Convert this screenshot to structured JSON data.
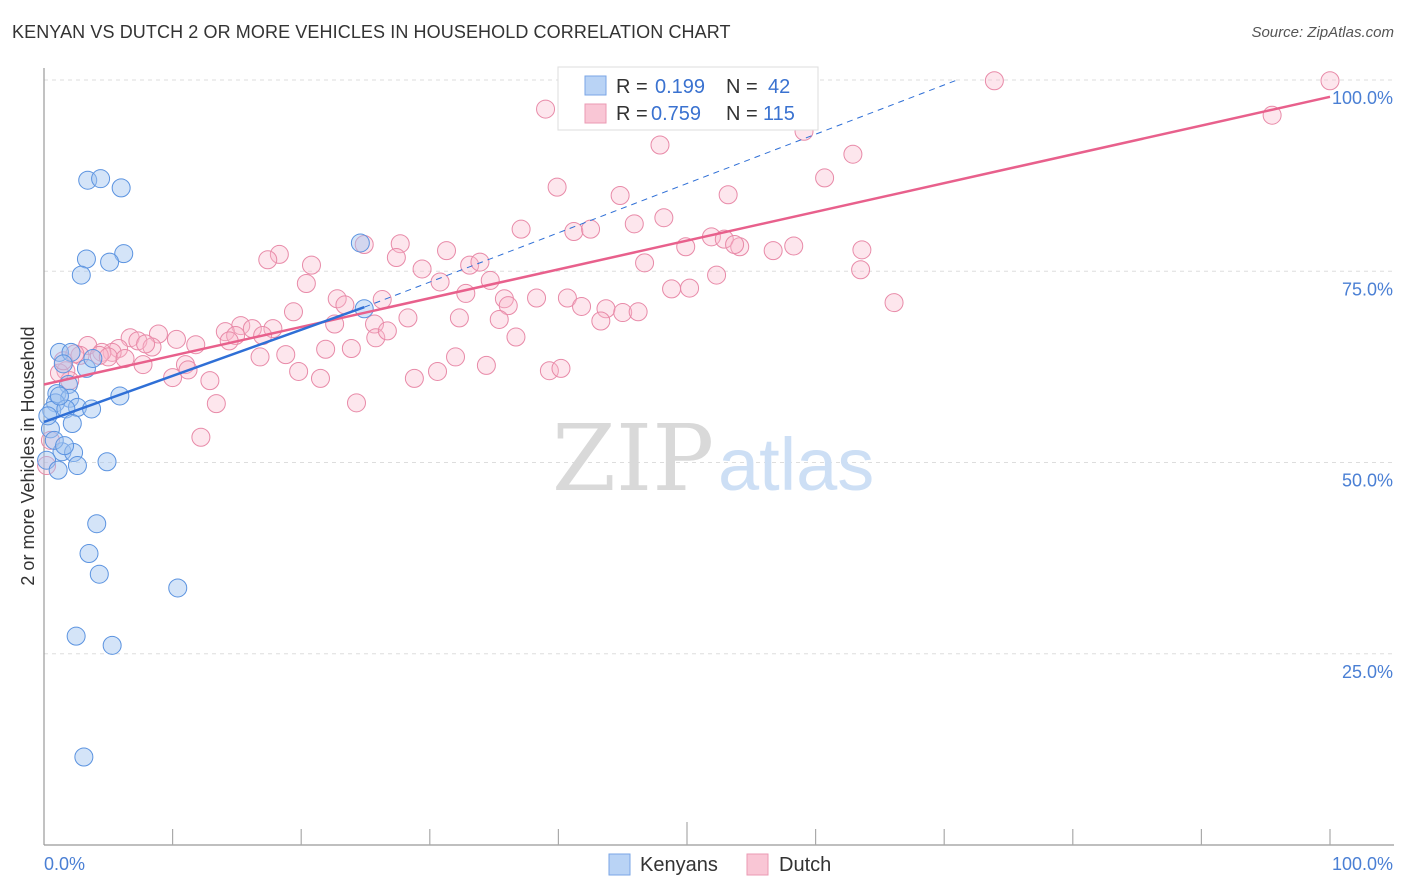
{
  "title": "KENYAN VS DUTCH 2 OR MORE VEHICLES IN HOUSEHOLD CORRELATION CHART",
  "source": "Source: ZipAtlas.com",
  "watermark": {
    "zip": "ZIP",
    "atlas": "atlas"
  },
  "legend_box": {
    "rows": [
      {
        "r_label": "R =",
        "r_value": "0.199",
        "n_label": "N =",
        "n_value": "42"
      },
      {
        "r_label": "R =",
        "r_value": "0.759",
        "n_label": "N =",
        "n_value": "115"
      }
    ]
  },
  "chart_data": {
    "type": "scatter",
    "title": "KENYAN VS DUTCH 2 OR MORE VEHICLES IN HOUSEHOLD CORRELATION CHART",
    "xlabel": "",
    "ylabel": "2 or more Vehicles in Household",
    "xlim": [
      0,
      100
    ],
    "ylim": [
      0,
      100
    ],
    "x_tick_labels": [
      "0.0%",
      "100.0%"
    ],
    "y_ticks": [
      25,
      50,
      75,
      100
    ],
    "y_tick_labels": [
      "25.0%",
      "50.0%",
      "75.0%",
      "100.0%"
    ],
    "grid": true,
    "legend_placement": "bottom",
    "colors": {
      "Kenyans": "#5b93e0",
      "Dutch": "#e88aa8",
      "Kenyans_line": "#2f6fd6",
      "Dutch_line": "#e8608c"
    },
    "series": [
      {
        "name": "Kenyans",
        "R": 0.199,
        "N": 42,
        "trend": {
          "x": [
            0,
            24.9
          ],
          "y": [
            55.3,
            70.3
          ],
          "dashed_to": [
            71,
            100
          ]
        },
        "points": [
          [
            3.4,
            86.9
          ],
          [
            4.4,
            87.1
          ],
          [
            6.0,
            85.9
          ],
          [
            6.2,
            77.3
          ],
          [
            3.3,
            76.6
          ],
          [
            5.1,
            76.2
          ],
          [
            2.9,
            74.5
          ],
          [
            24.6,
            78.7
          ],
          [
            24.9,
            70.1
          ],
          [
            1.2,
            64.4
          ],
          [
            2.1,
            64.4
          ],
          [
            1.5,
            62.9
          ],
          [
            3.3,
            62.3
          ],
          [
            3.8,
            63.6
          ],
          [
            1.9,
            60.2
          ],
          [
            1.0,
            59.0
          ],
          [
            5.9,
            58.7
          ],
          [
            2.0,
            58.4
          ],
          [
            0.9,
            57.8
          ],
          [
            2.6,
            57.2
          ],
          [
            3.7,
            57.0
          ],
          [
            0.6,
            56.8
          ],
          [
            1.7,
            57.0
          ],
          [
            2.2,
            55.1
          ],
          [
            0.5,
            54.4
          ],
          [
            1.4,
            51.4
          ],
          [
            2.3,
            51.3
          ],
          [
            4.9,
            50.1
          ],
          [
            2.6,
            49.6
          ],
          [
            0.2,
            50.3
          ],
          [
            4.1,
            42.0
          ],
          [
            3.5,
            38.1
          ],
          [
            4.3,
            35.4
          ],
          [
            10.4,
            33.6
          ],
          [
            2.5,
            27.3
          ],
          [
            5.3,
            26.1
          ],
          [
            3.1,
            11.5
          ],
          [
            0.3,
            56.1
          ],
          [
            1.2,
            58.7
          ],
          [
            0.8,
            52.9
          ],
          [
            1.6,
            52.2
          ],
          [
            1.1,
            49.0
          ]
        ]
      },
      {
        "name": "Dutch",
        "R": 0.759,
        "N": 115,
        "trend": {
          "x": [
            0,
            100
          ],
          "y": [
            60.2,
            97.8
          ]
        },
        "points": [
          [
            73.9,
            99.9
          ],
          [
            100,
            99.9
          ],
          [
            54.6,
            99.9
          ],
          [
            39.0,
            96.2
          ],
          [
            95.5,
            95.4
          ],
          [
            59.1,
            93.3
          ],
          [
            47.9,
            91.5
          ],
          [
            62.9,
            90.3
          ],
          [
            39.9,
            86.0
          ],
          [
            60.7,
            87.2
          ],
          [
            44.8,
            84.9
          ],
          [
            53.2,
            85.0
          ],
          [
            48.2,
            82.0
          ],
          [
            45.9,
            81.2
          ],
          [
            37.1,
            80.5
          ],
          [
            41.2,
            80.2
          ],
          [
            42.5,
            80.5
          ],
          [
            49.9,
            78.2
          ],
          [
            51.9,
            79.5
          ],
          [
            52.9,
            79.2
          ],
          [
            54.1,
            78.2
          ],
          [
            53.7,
            78.5
          ],
          [
            56.7,
            77.7
          ],
          [
            58.3,
            78.3
          ],
          [
            63.6,
            77.8
          ],
          [
            27.7,
            78.6
          ],
          [
            24.9,
            78.5
          ],
          [
            31.3,
            77.7
          ],
          [
            18.3,
            77.2
          ],
          [
            17.4,
            76.5
          ],
          [
            20.8,
            75.8
          ],
          [
            27.4,
            76.8
          ],
          [
            33.1,
            75.8
          ],
          [
            33.9,
            76.2
          ],
          [
            29.4,
            75.3
          ],
          [
            30.8,
            73.6
          ],
          [
            34.7,
            73.8
          ],
          [
            46.7,
            76.1
          ],
          [
            63.5,
            75.2
          ],
          [
            52.3,
            74.5
          ],
          [
            20.4,
            73.4
          ],
          [
            19.4,
            69.7
          ],
          [
            22.8,
            71.4
          ],
          [
            23.4,
            70.6
          ],
          [
            26.3,
            71.3
          ],
          [
            32.8,
            72.1
          ],
          [
            35.8,
            71.4
          ],
          [
            38.3,
            71.5
          ],
          [
            40.7,
            71.5
          ],
          [
            36.1,
            70.5
          ],
          [
            41.8,
            70.4
          ],
          [
            43.7,
            70.1
          ],
          [
            45.0,
            69.6
          ],
          [
            46.2,
            69.7
          ],
          [
            48.8,
            72.7
          ],
          [
            50.2,
            72.8
          ],
          [
            66.1,
            70.9
          ],
          [
            28.3,
            68.9
          ],
          [
            32.3,
            68.9
          ],
          [
            35.4,
            68.7
          ],
          [
            43.3,
            68.5
          ],
          [
            22.6,
            68.1
          ],
          [
            25.7,
            68.1
          ],
          [
            25.8,
            66.3
          ],
          [
            26.7,
            67.2
          ],
          [
            36.7,
            66.4
          ],
          [
            15.3,
            67.9
          ],
          [
            14.1,
            67.1
          ],
          [
            16.2,
            67.5
          ],
          [
            17.8,
            67.5
          ],
          [
            14.9,
            66.6
          ],
          [
            8.9,
            66.8
          ],
          [
            10.3,
            66.1
          ],
          [
            6.7,
            66.3
          ],
          [
            7.3,
            65.9
          ],
          [
            8.4,
            65.1
          ],
          [
            11.8,
            65.4
          ],
          [
            7.9,
            65.5
          ],
          [
            5.8,
            64.9
          ],
          [
            5.3,
            64.4
          ],
          [
            3.4,
            65.3
          ],
          [
            4.5,
            64.4
          ],
          [
            4.3,
            64.0
          ],
          [
            2.8,
            64.0
          ],
          [
            5.0,
            63.8
          ],
          [
            6.3,
            63.6
          ],
          [
            16.8,
            63.8
          ],
          [
            18.8,
            64.1
          ],
          [
            21.9,
            64.8
          ],
          [
            23.9,
            64.9
          ],
          [
            32.0,
            63.8
          ],
          [
            11.0,
            62.8
          ],
          [
            19.8,
            61.9
          ],
          [
            11.2,
            62.1
          ],
          [
            10.0,
            61.1
          ],
          [
            12.9,
            60.7
          ],
          [
            21.5,
            61.0
          ],
          [
            28.8,
            61.0
          ],
          [
            30.6,
            61.9
          ],
          [
            34.4,
            62.7
          ],
          [
            39.3,
            62.0
          ],
          [
            40.2,
            62.3
          ],
          [
            13.4,
            57.7
          ],
          [
            24.3,
            57.8
          ],
          [
            12.2,
            53.3
          ],
          [
            1.7,
            62.0
          ],
          [
            2.0,
            60.7
          ],
          [
            1.2,
            61.7
          ],
          [
            0.5,
            52.9
          ],
          [
            0.2,
            49.6
          ],
          [
            1.5,
            63.3
          ],
          [
            2.4,
            64.2
          ],
          [
            7.7,
            62.8
          ],
          [
            17.0,
            66.6
          ],
          [
            14.4,
            65.9
          ]
        ]
      }
    ]
  }
}
